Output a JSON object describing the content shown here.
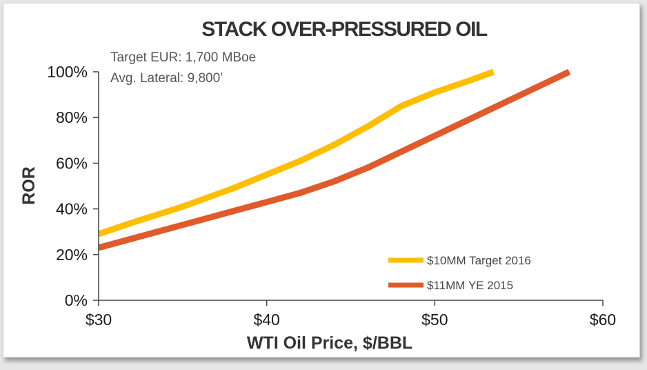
{
  "chart_data": {
    "type": "line",
    "title": "STACK OVER-PRESSURED OIL",
    "annotations": [
      "Target EUR: 1,700 MBoe",
      "Avg. Lateral: 9,800’"
    ],
    "xlabel": "WTI Oil Price, $/BBL",
    "ylabel": "ROR",
    "xlim": [
      30,
      60
    ],
    "ylim": [
      0,
      100
    ],
    "x_ticks": [
      30,
      40,
      50,
      60
    ],
    "x_tick_labels": [
      "$30",
      "$40",
      "$50",
      "$60"
    ],
    "y_ticks": [
      0,
      20,
      40,
      60,
      80,
      100
    ],
    "y_tick_labels": [
      "0%",
      "20%",
      "40%",
      "60%",
      "80%",
      "100%"
    ],
    "grid": false,
    "legend_position": "bottom-right",
    "series": [
      {
        "name": "$10MM Target 2016",
        "color": "#ffbf00",
        "x": [
          30,
          32,
          35,
          38,
          40,
          42,
          44,
          46,
          48,
          50,
          52,
          53.5
        ],
        "y": [
          29,
          34,
          41,
          49,
          55,
          61,
          68,
          76,
          85,
          91,
          96,
          100
        ]
      },
      {
        "name": "$11MM YE 2015",
        "color": "#e05a2b",
        "x": [
          30,
          32,
          35,
          38,
          40,
          42,
          44,
          46,
          48,
          50,
          52,
          54,
          56,
          58
        ],
        "y": [
          23,
          27,
          33,
          39,
          43,
          47,
          52,
          58,
          65,
          72,
          79,
          86,
          93,
          100
        ]
      }
    ]
  }
}
